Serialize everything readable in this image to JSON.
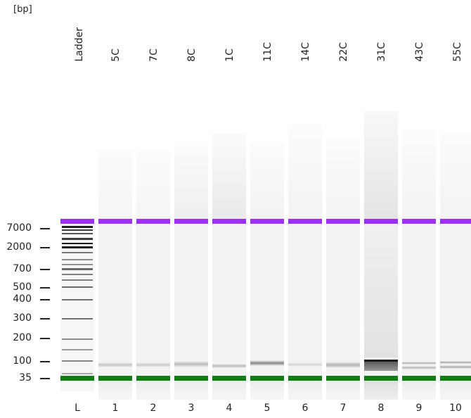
{
  "unit_label": "[bp]",
  "lanes": [
    {
      "number": "L",
      "label": "Ladder"
    },
    {
      "number": "1",
      "label": "5C"
    },
    {
      "number": "2",
      "label": "7C"
    },
    {
      "number": "3",
      "label": "8C"
    },
    {
      "number": "4",
      "label": "1C"
    },
    {
      "number": "5",
      "label": "11C"
    },
    {
      "number": "6",
      "label": "14C"
    },
    {
      "number": "7",
      "label": "22C"
    },
    {
      "number": "8",
      "label": "31C"
    },
    {
      "number": "9",
      "label": "43C"
    },
    {
      "number": "10",
      "label": "55C"
    }
  ],
  "size_markers": [
    "7000",
    "2000",
    "700",
    "500",
    "400",
    "300",
    "200",
    "100",
    "35"
  ],
  "colors": {
    "upper_marker": "#9b30f0",
    "lower_marker": "#0f7d12",
    "lane_background": "#f3f3f3",
    "text": "#222222"
  }
}
